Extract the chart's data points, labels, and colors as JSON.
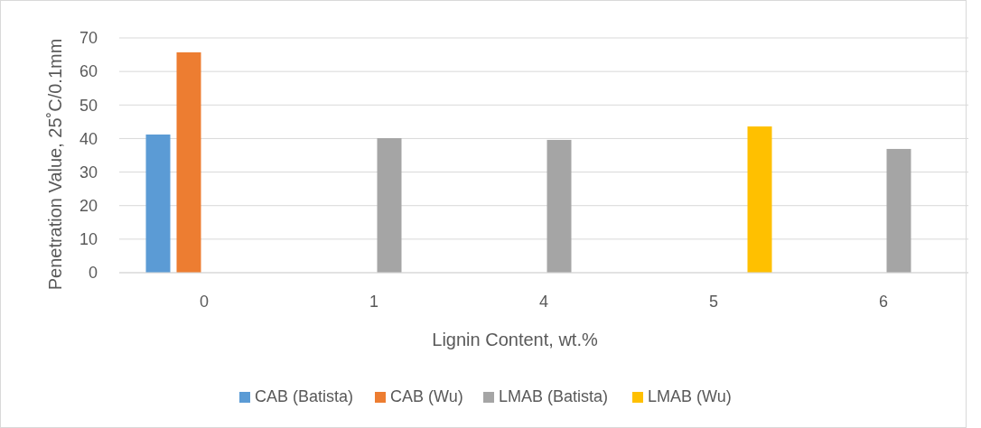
{
  "chart_data": {
    "type": "bar",
    "xlabel": "Lignin Content, wt.%",
    "ylabel": "Penetration Value, 25˚C/0.1mm",
    "categories": [
      "0",
      "1",
      "4",
      "5",
      "6"
    ],
    "series": [
      {
        "name": "CAB (Batista)",
        "color": "#5b9bd5",
        "values": [
          41.2,
          null,
          null,
          null,
          null
        ]
      },
      {
        "name": "CAB (Wu)",
        "color": "#ed7d31",
        "values": [
          65.7,
          null,
          null,
          null,
          null
        ]
      },
      {
        "name": "LMAB (Batista)",
        "color": "#a5a5a5",
        "values": [
          null,
          40.1,
          39.6,
          null,
          36.9
        ]
      },
      {
        "name": "LMAB (Wu)",
        "color": "#ffc000",
        "values": [
          null,
          null,
          null,
          43.6,
          null
        ]
      }
    ],
    "ylim": [
      0,
      70
    ],
    "yticks": [
      0,
      10,
      20,
      30,
      40,
      50,
      60,
      70
    ],
    "grid": "y",
    "legend": "bottom"
  }
}
